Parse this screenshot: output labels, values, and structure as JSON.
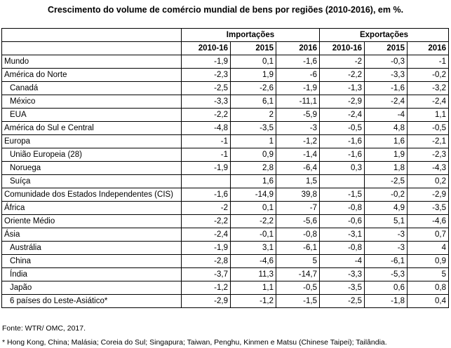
{
  "chart_data": {
    "type": "table",
    "title": "Crescimento do volume de comércio mundial de bens por regiões (2010-2016), em %.",
    "column_groups": [
      "Importações",
      "Exportações"
    ],
    "columns": [
      "2010-16",
      "2015",
      "2016",
      "2010-16",
      "2015",
      "2016"
    ],
    "rows": [
      {
        "region": "Mundo",
        "indent": false,
        "values": [
          "-1,9",
          "0,1",
          "-1,6",
          "-2",
          "-0,3",
          "-1"
        ]
      },
      {
        "region": "América do Norte",
        "indent": false,
        "values": [
          "-2,3",
          "1,9",
          "-6",
          "-2,2",
          "-3,3",
          "-0,2"
        ]
      },
      {
        "region": "Canadá",
        "indent": true,
        "values": [
          "-2,5",
          "-2,6",
          "-1,9",
          "-1,3",
          "-1,6",
          "-3,2"
        ]
      },
      {
        "region": "México",
        "indent": true,
        "values": [
          "-3,3",
          "6,1",
          "-11,1",
          "-2,9",
          "-2,4",
          "-2,4"
        ]
      },
      {
        "region": "EUA",
        "indent": true,
        "values": [
          "-2,2",
          "2",
          "-5,9",
          "-2,4",
          "-4",
          "1,1"
        ]
      },
      {
        "region": "América do Sul e Central",
        "indent": false,
        "values": [
          "-4,8",
          "-3,5",
          "-3",
          "-0,5",
          "4,8",
          "-0,5"
        ]
      },
      {
        "region": "Europa",
        "indent": false,
        "values": [
          "-1",
          "1",
          "-1,2",
          "-1,6",
          "1,6",
          "-2,1"
        ]
      },
      {
        "region": "União Europeia (28)",
        "indent": true,
        "values": [
          "-1",
          "0,9",
          "-1,4",
          "-1,6",
          "1,9",
          "-2,3"
        ]
      },
      {
        "region": "Noruega",
        "indent": true,
        "values": [
          "-1,9",
          "2,8",
          "-6,4",
          "0,3",
          "1,8",
          "-4,3"
        ]
      },
      {
        "region": "Suíça",
        "indent": true,
        "values": [
          "",
          "1,6",
          "1,5",
          "",
          "-2,5",
          "0,2"
        ]
      },
      {
        "region": "Comunidade dos Estados Independentes (CIS)",
        "indent": false,
        "values": [
          "-1,6",
          "-14,9",
          "39,8",
          "-1,5",
          "-0,2",
          "-2,9"
        ]
      },
      {
        "region": "África",
        "indent": false,
        "values": [
          "-2",
          "0,1",
          "-7",
          "-0,8",
          "4,9",
          "-3,5"
        ]
      },
      {
        "region": "Oriente Médio",
        "indent": false,
        "values": [
          "-2,2",
          "-2,2",
          "-5,6",
          "-0,6",
          "5,1",
          "-4,6"
        ]
      },
      {
        "region": "Ásia",
        "indent": false,
        "values": [
          "-2,4",
          "-0,1",
          "-0,8",
          "-3,1",
          "-3",
          "0,7"
        ]
      },
      {
        "region": "Austrália",
        "indent": true,
        "values": [
          "-1,9",
          "3,1",
          "-6,1",
          "-0,8",
          "-3",
          "4"
        ]
      },
      {
        "region": "China",
        "indent": true,
        "values": [
          "-2,8",
          "-4,6",
          "5",
          "-4",
          "-6,1",
          "0,9"
        ]
      },
      {
        "region": "Índia",
        "indent": true,
        "values": [
          "-3,7",
          "11,3",
          "-14,7",
          "-3,3",
          "-5,3",
          "5"
        ]
      },
      {
        "region": "Japão",
        "indent": true,
        "values": [
          "-1,2",
          "1,1",
          "-0,5",
          "-3,5",
          "0,6",
          "0,8"
        ]
      },
      {
        "region": "6 países do Leste-Asiático*",
        "indent": true,
        "values": [
          "-2,9",
          "-1,2",
          "-1,5",
          "-2,5",
          "-1,8",
          "0,4"
        ]
      }
    ],
    "source": "Fonte: WTR/ OMC, 2017.",
    "footnote": "* Hong Kong, China; Malásia; Coreia do Sul; Singapura; Taiwan, Penghu, Kinmen e Matsu (Chinese Taipei); Tailândia."
  }
}
